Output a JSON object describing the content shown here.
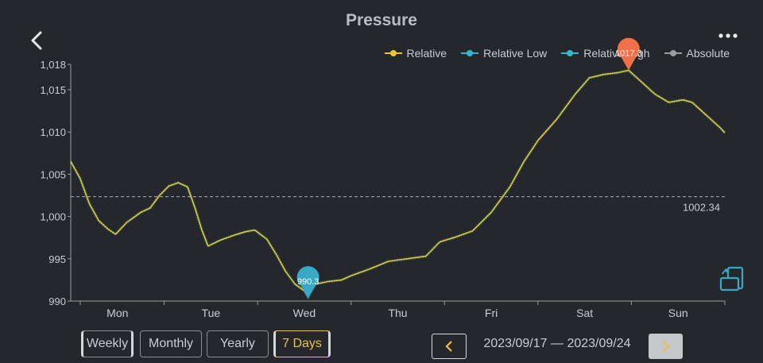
{
  "header": {
    "title": "Pressure"
  },
  "legend": [
    {
      "label": "Relative",
      "color": "#e8c53a"
    },
    {
      "label": "Relative Low",
      "color": "#38b6c9"
    },
    {
      "label": "Relative High",
      "color": "#38b6c9"
    },
    {
      "label": "Absolute",
      "color": "#9a9ca0"
    }
  ],
  "chart_data": {
    "type": "line",
    "title": "Pressure",
    "xlabel": "",
    "ylabel": "",
    "ylim": [
      990,
      1018
    ],
    "xlim": [
      0,
      7
    ],
    "y_ticks": [
      "990",
      "995",
      "1,000",
      "1,005",
      "1,010",
      "1,015",
      "1,018"
    ],
    "y_tick_values": [
      990,
      995,
      1000,
      1005,
      1010,
      1015,
      1018
    ],
    "x_ticks": [
      "Mon",
      "Tue",
      "Wed",
      "Thu",
      "Fri",
      "Sat",
      "Sun"
    ],
    "reference_line": {
      "value": 1002.34,
      "label": "1002.34"
    },
    "min_marker": {
      "x": 2.54,
      "value": 990.3,
      "label": "990.3"
    },
    "max_marker": {
      "x": 5.97,
      "value": 1017.3,
      "label": "1017.3"
    },
    "series": [
      {
        "name": "Relative",
        "color": "#e8c53a",
        "points": [
          [
            0.0,
            1006.5
          ],
          [
            0.1,
            1004.5
          ],
          [
            0.2,
            1001.5
          ],
          [
            0.3,
            999.5
          ],
          [
            0.4,
            998.5
          ],
          [
            0.48,
            997.9
          ],
          [
            0.6,
            999.3
          ],
          [
            0.75,
            1000.5
          ],
          [
            0.85,
            1001.0
          ],
          [
            0.95,
            1002.5
          ],
          [
            1.05,
            1003.6
          ],
          [
            1.15,
            1004.0
          ],
          [
            1.25,
            1003.5
          ],
          [
            1.33,
            1001.0
          ],
          [
            1.4,
            998.5
          ],
          [
            1.47,
            996.5
          ],
          [
            1.6,
            997.2
          ],
          [
            1.75,
            997.8
          ],
          [
            1.87,
            998.2
          ],
          [
            1.97,
            998.4
          ],
          [
            2.1,
            997.3
          ],
          [
            2.2,
            995.5
          ],
          [
            2.3,
            993.5
          ],
          [
            2.4,
            992.0
          ],
          [
            2.5,
            991.2
          ],
          [
            2.54,
            990.5
          ],
          [
            2.62,
            992.0
          ],
          [
            2.75,
            992.3
          ],
          [
            2.9,
            992.5
          ],
          [
            3.0,
            993.0
          ],
          [
            3.2,
            993.8
          ],
          [
            3.4,
            994.7
          ],
          [
            3.6,
            995.0
          ],
          [
            3.8,
            995.3
          ],
          [
            3.95,
            997.0
          ],
          [
            4.1,
            997.5
          ],
          [
            4.3,
            998.3
          ],
          [
            4.5,
            1000.5
          ],
          [
            4.7,
            1003.5
          ],
          [
            4.85,
            1006.5
          ],
          [
            5.0,
            1009.0
          ],
          [
            5.2,
            1011.5
          ],
          [
            5.4,
            1014.5
          ],
          [
            5.55,
            1016.4
          ],
          [
            5.7,
            1016.8
          ],
          [
            5.85,
            1017.0
          ],
          [
            5.97,
            1017.3
          ],
          [
            6.1,
            1016.0
          ],
          [
            6.25,
            1014.5
          ],
          [
            6.4,
            1013.5
          ],
          [
            6.55,
            1013.8
          ],
          [
            6.65,
            1013.5
          ],
          [
            6.8,
            1012.0
          ],
          [
            6.95,
            1010.5
          ],
          [
            7.0,
            1009.9
          ]
        ]
      },
      {
        "name": "Relative Low",
        "color": "#38b6c9"
      },
      {
        "name": "Relative High",
        "color": "#38b6c9"
      },
      {
        "name": "Absolute",
        "color": "#9a9ca0"
      }
    ]
  },
  "controls": {
    "weekly": "Weekly",
    "monthly": "Monthly",
    "yearly": "Yearly",
    "seven_days": "7 Days",
    "date_range": "2023/09/17 — 2023/09/24"
  },
  "colors": {
    "accent": "#e9c04a",
    "low_marker": "#3aa8c4",
    "high_marker": "#f0704a"
  }
}
